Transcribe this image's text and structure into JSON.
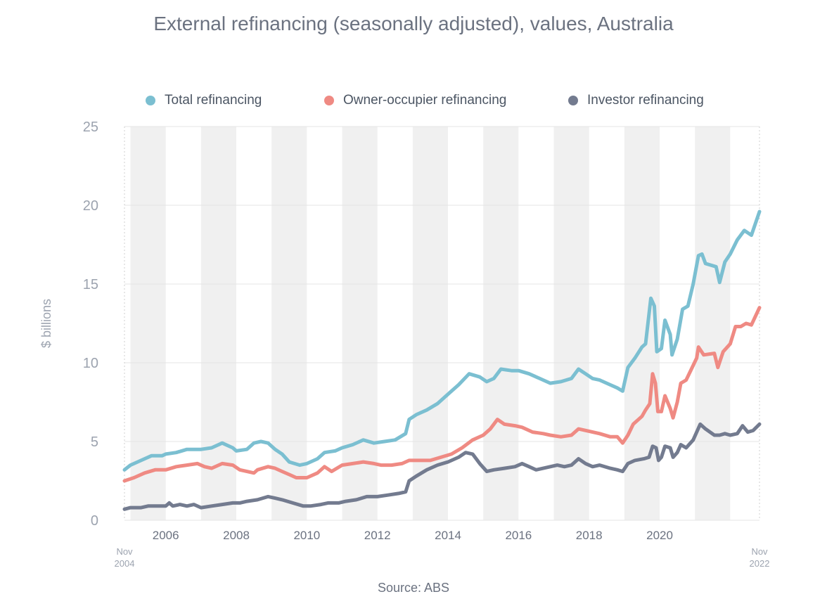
{
  "chart_data": {
    "type": "line",
    "title": "External refinancing (seasonally adjusted), values, Australia",
    "ylabel": "$ billions",
    "xlabel": "",
    "source": "Source: ABS",
    "xlim": [
      2004.83,
      2022.83
    ],
    "ylim": [
      0,
      25
    ],
    "y_ticks": [
      0,
      5,
      10,
      15,
      20,
      25
    ],
    "x_tick_labels": [
      {
        "x": 2006,
        "label": "2006"
      },
      {
        "x": 2008,
        "label": "2008"
      },
      {
        "x": 2010,
        "label": "2010"
      },
      {
        "x": 2012,
        "label": "2012"
      },
      {
        "x": 2014,
        "label": "2014"
      },
      {
        "x": 2016,
        "label": "2016"
      },
      {
        "x": 2018,
        "label": "2018"
      },
      {
        "x": 2020,
        "label": "2020"
      }
    ],
    "x_end_labels": {
      "start": [
        "Nov",
        "2004"
      ],
      "end": [
        "Nov",
        "2022"
      ]
    },
    "grid": true,
    "legend_position": "top",
    "series": [
      {
        "name": "Total refinancing",
        "color": "#7bbfd1",
        "points": [
          [
            2004.83,
            3.2
          ],
          [
            2005.0,
            3.5
          ],
          [
            2005.3,
            3.8
          ],
          [
            2005.6,
            4.1
          ],
          [
            2005.9,
            4.1
          ],
          [
            2006.0,
            4.2
          ],
          [
            2006.3,
            4.3
          ],
          [
            2006.6,
            4.5
          ],
          [
            2007.0,
            4.5
          ],
          [
            2007.3,
            4.6
          ],
          [
            2007.6,
            4.9
          ],
          [
            2007.9,
            4.6
          ],
          [
            2008.0,
            4.4
          ],
          [
            2008.3,
            4.5
          ],
          [
            2008.5,
            4.9
          ],
          [
            2008.7,
            5.0
          ],
          [
            2008.9,
            4.9
          ],
          [
            2009.1,
            4.5
          ],
          [
            2009.3,
            4.2
          ],
          [
            2009.5,
            3.7
          ],
          [
            2009.8,
            3.5
          ],
          [
            2010.0,
            3.6
          ],
          [
            2010.3,
            3.9
          ],
          [
            2010.5,
            4.3
          ],
          [
            2010.8,
            4.4
          ],
          [
            2011.0,
            4.6
          ],
          [
            2011.3,
            4.8
          ],
          [
            2011.6,
            5.1
          ],
          [
            2011.9,
            4.9
          ],
          [
            2012.2,
            5.0
          ],
          [
            2012.5,
            5.1
          ],
          [
            2012.8,
            5.5
          ],
          [
            2012.9,
            6.4
          ],
          [
            2013.1,
            6.7
          ],
          [
            2013.4,
            7.0
          ],
          [
            2013.7,
            7.4
          ],
          [
            2014.0,
            8.0
          ],
          [
            2014.3,
            8.6
          ],
          [
            2014.6,
            9.3
          ],
          [
            2014.9,
            9.1
          ],
          [
            2015.1,
            8.8
          ],
          [
            2015.3,
            9.0
          ],
          [
            2015.5,
            9.6
          ],
          [
            2015.8,
            9.5
          ],
          [
            2016.0,
            9.5
          ],
          [
            2016.3,
            9.3
          ],
          [
            2016.6,
            9.0
          ],
          [
            2016.9,
            8.7
          ],
          [
            2017.2,
            8.8
          ],
          [
            2017.5,
            9.0
          ],
          [
            2017.7,
            9.6
          ],
          [
            2017.9,
            9.3
          ],
          [
            2018.1,
            9.0
          ],
          [
            2018.3,
            8.9
          ],
          [
            2018.6,
            8.6
          ],
          [
            2018.8,
            8.4
          ],
          [
            2018.95,
            8.2
          ],
          [
            2019.1,
            9.7
          ],
          [
            2019.3,
            10.3
          ],
          [
            2019.5,
            11.0
          ],
          [
            2019.6,
            11.2
          ],
          [
            2019.75,
            14.1
          ],
          [
            2019.85,
            13.6
          ],
          [
            2019.92,
            10.7
          ],
          [
            2020.05,
            10.9
          ],
          [
            2020.15,
            12.7
          ],
          [
            2020.3,
            11.8
          ],
          [
            2020.35,
            10.5
          ],
          [
            2020.5,
            11.5
          ],
          [
            2020.65,
            13.4
          ],
          [
            2020.8,
            13.6
          ],
          [
            2020.95,
            15.0
          ],
          [
            2021.1,
            16.8
          ],
          [
            2021.2,
            16.9
          ],
          [
            2021.3,
            16.3
          ],
          [
            2021.6,
            16.1
          ],
          [
            2021.7,
            15.1
          ],
          [
            2021.85,
            16.4
          ],
          [
            2022.0,
            16.9
          ],
          [
            2022.2,
            17.8
          ],
          [
            2022.4,
            18.4
          ],
          [
            2022.6,
            18.1
          ],
          [
            2022.83,
            19.6
          ]
        ]
      },
      {
        "name": "Owner-occupier refinancing",
        "color": "#ef8a83",
        "points": [
          [
            2004.83,
            2.5
          ],
          [
            2005.1,
            2.7
          ],
          [
            2005.4,
            3.0
          ],
          [
            2005.7,
            3.2
          ],
          [
            2006.0,
            3.2
          ],
          [
            2006.3,
            3.4
          ],
          [
            2006.6,
            3.5
          ],
          [
            2006.9,
            3.6
          ],
          [
            2007.1,
            3.4
          ],
          [
            2007.3,
            3.3
          ],
          [
            2007.6,
            3.6
          ],
          [
            2007.9,
            3.5
          ],
          [
            2008.1,
            3.2
          ],
          [
            2008.3,
            3.1
          ],
          [
            2008.5,
            3.0
          ],
          [
            2008.6,
            3.2
          ],
          [
            2008.9,
            3.4
          ],
          [
            2009.1,
            3.3
          ],
          [
            2009.3,
            3.1
          ],
          [
            2009.5,
            2.9
          ],
          [
            2009.7,
            2.7
          ],
          [
            2010.0,
            2.7
          ],
          [
            2010.3,
            3.0
          ],
          [
            2010.5,
            3.4
          ],
          [
            2010.7,
            3.1
          ],
          [
            2011.0,
            3.5
          ],
          [
            2011.3,
            3.6
          ],
          [
            2011.6,
            3.7
          ],
          [
            2011.9,
            3.6
          ],
          [
            2012.1,
            3.5
          ],
          [
            2012.4,
            3.5
          ],
          [
            2012.7,
            3.6
          ],
          [
            2012.9,
            3.8
          ],
          [
            2013.2,
            3.8
          ],
          [
            2013.5,
            3.8
          ],
          [
            2013.8,
            4.0
          ],
          [
            2014.1,
            4.2
          ],
          [
            2014.4,
            4.6
          ],
          [
            2014.7,
            5.1
          ],
          [
            2015.0,
            5.4
          ],
          [
            2015.2,
            5.8
          ],
          [
            2015.4,
            6.4
          ],
          [
            2015.6,
            6.1
          ],
          [
            2015.9,
            6.0
          ],
          [
            2016.1,
            5.9
          ],
          [
            2016.4,
            5.6
          ],
          [
            2016.7,
            5.5
          ],
          [
            2016.9,
            5.4
          ],
          [
            2017.2,
            5.3
          ],
          [
            2017.5,
            5.4
          ],
          [
            2017.7,
            5.8
          ],
          [
            2017.9,
            5.7
          ],
          [
            2018.1,
            5.6
          ],
          [
            2018.3,
            5.5
          ],
          [
            2018.6,
            5.3
          ],
          [
            2018.8,
            5.3
          ],
          [
            2018.95,
            4.9
          ],
          [
            2019.1,
            5.4
          ],
          [
            2019.25,
            6.1
          ],
          [
            2019.5,
            6.6
          ],
          [
            2019.6,
            7.0
          ],
          [
            2019.72,
            7.4
          ],
          [
            2019.8,
            9.3
          ],
          [
            2019.88,
            8.7
          ],
          [
            2019.95,
            6.9
          ],
          [
            2020.05,
            6.9
          ],
          [
            2020.15,
            7.9
          ],
          [
            2020.3,
            7.1
          ],
          [
            2020.38,
            6.5
          ],
          [
            2020.5,
            7.5
          ],
          [
            2020.6,
            8.7
          ],
          [
            2020.75,
            8.9
          ],
          [
            2020.9,
            9.6
          ],
          [
            2021.05,
            10.3
          ],
          [
            2021.1,
            11.0
          ],
          [
            2021.25,
            10.5
          ],
          [
            2021.55,
            10.6
          ],
          [
            2021.65,
            9.7
          ],
          [
            2021.8,
            10.7
          ],
          [
            2022.0,
            11.2
          ],
          [
            2022.15,
            12.3
          ],
          [
            2022.3,
            12.3
          ],
          [
            2022.45,
            12.5
          ],
          [
            2022.6,
            12.4
          ],
          [
            2022.83,
            13.5
          ]
        ]
      },
      {
        "name": "Investor refinancing",
        "color": "#737b8f",
        "points": [
          [
            2004.83,
            0.7
          ],
          [
            2005.0,
            0.8
          ],
          [
            2005.3,
            0.8
          ],
          [
            2005.5,
            0.9
          ],
          [
            2005.8,
            0.9
          ],
          [
            2006.0,
            0.9
          ],
          [
            2006.1,
            1.1
          ],
          [
            2006.2,
            0.9
          ],
          [
            2006.4,
            1.0
          ],
          [
            2006.6,
            0.9
          ],
          [
            2006.8,
            1.0
          ],
          [
            2007.0,
            0.8
          ],
          [
            2007.3,
            0.9
          ],
          [
            2007.6,
            1.0
          ],
          [
            2007.9,
            1.1
          ],
          [
            2008.1,
            1.1
          ],
          [
            2008.3,
            1.2
          ],
          [
            2008.6,
            1.3
          ],
          [
            2008.9,
            1.5
          ],
          [
            2009.1,
            1.4
          ],
          [
            2009.3,
            1.3
          ],
          [
            2009.6,
            1.1
          ],
          [
            2009.9,
            0.9
          ],
          [
            2010.1,
            0.9
          ],
          [
            2010.4,
            1.0
          ],
          [
            2010.6,
            1.1
          ],
          [
            2010.9,
            1.1
          ],
          [
            2011.1,
            1.2
          ],
          [
            2011.4,
            1.3
          ],
          [
            2011.7,
            1.5
          ],
          [
            2012.0,
            1.5
          ],
          [
            2012.3,
            1.6
          ],
          [
            2012.6,
            1.7
          ],
          [
            2012.8,
            1.8
          ],
          [
            2012.9,
            2.5
          ],
          [
            2013.1,
            2.8
          ],
          [
            2013.4,
            3.2
          ],
          [
            2013.7,
            3.5
          ],
          [
            2014.0,
            3.7
          ],
          [
            2014.3,
            4.0
          ],
          [
            2014.5,
            4.3
          ],
          [
            2014.7,
            4.2
          ],
          [
            2014.9,
            3.6
          ],
          [
            2015.1,
            3.1
          ],
          [
            2015.3,
            3.2
          ],
          [
            2015.6,
            3.3
          ],
          [
            2015.9,
            3.4
          ],
          [
            2016.1,
            3.6
          ],
          [
            2016.3,
            3.4
          ],
          [
            2016.5,
            3.2
          ],
          [
            2016.7,
            3.3
          ],
          [
            2016.9,
            3.4
          ],
          [
            2017.1,
            3.5
          ],
          [
            2017.3,
            3.4
          ],
          [
            2017.5,
            3.5
          ],
          [
            2017.7,
            3.9
          ],
          [
            2017.9,
            3.6
          ],
          [
            2018.1,
            3.4
          ],
          [
            2018.3,
            3.5
          ],
          [
            2018.6,
            3.3
          ],
          [
            2018.8,
            3.2
          ],
          [
            2018.95,
            3.1
          ],
          [
            2019.1,
            3.6
          ],
          [
            2019.3,
            3.8
          ],
          [
            2019.55,
            3.9
          ],
          [
            2019.7,
            4.0
          ],
          [
            2019.8,
            4.7
          ],
          [
            2019.9,
            4.6
          ],
          [
            2019.97,
            3.8
          ],
          [
            2020.05,
            4.0
          ],
          [
            2020.15,
            4.7
          ],
          [
            2020.3,
            4.6
          ],
          [
            2020.38,
            4.0
          ],
          [
            2020.5,
            4.3
          ],
          [
            2020.6,
            4.8
          ],
          [
            2020.75,
            4.6
          ],
          [
            2020.95,
            5.1
          ],
          [
            2021.05,
            5.6
          ],
          [
            2021.15,
            6.1
          ],
          [
            2021.3,
            5.8
          ],
          [
            2021.55,
            5.4
          ],
          [
            2021.7,
            5.4
          ],
          [
            2021.85,
            5.5
          ],
          [
            2022.0,
            5.4
          ],
          [
            2022.2,
            5.5
          ],
          [
            2022.35,
            6.0
          ],
          [
            2022.5,
            5.6
          ],
          [
            2022.65,
            5.7
          ],
          [
            2022.83,
            6.1
          ]
        ]
      }
    ]
  }
}
